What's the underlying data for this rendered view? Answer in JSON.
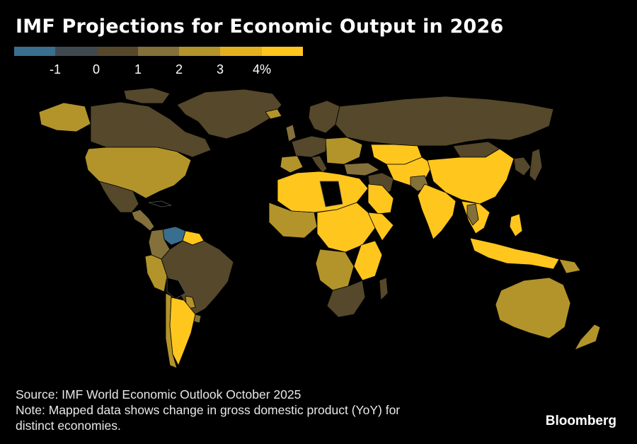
{
  "title": "IMF Projections for Economic Output in 2026",
  "legend": {
    "colors": [
      "#3a6e8e",
      "#3f4a50",
      "#55482b",
      "#84703a",
      "#b3942b",
      "#e3b11e",
      "#ffc61e"
    ],
    "ticks": [
      "-1",
      "0",
      "1",
      "2",
      "3",
      "4%"
    ]
  },
  "map": {
    "colors": {
      "ocean": "#000000",
      "neg": "#3a6e8e",
      "low": "#55482b",
      "mid": "#84703a",
      "midhigh": "#b3942b",
      "high": "#ffc61e",
      "nodata": "#000000"
    }
  },
  "footer": {
    "source": "Source: IMF World Economic Outlook October 2025",
    "note_line1": "Note: Mapped data shows change in gross domestic product (YoY) for",
    "note_line2": "distinct economies."
  },
  "brand": "Bloomberg"
}
